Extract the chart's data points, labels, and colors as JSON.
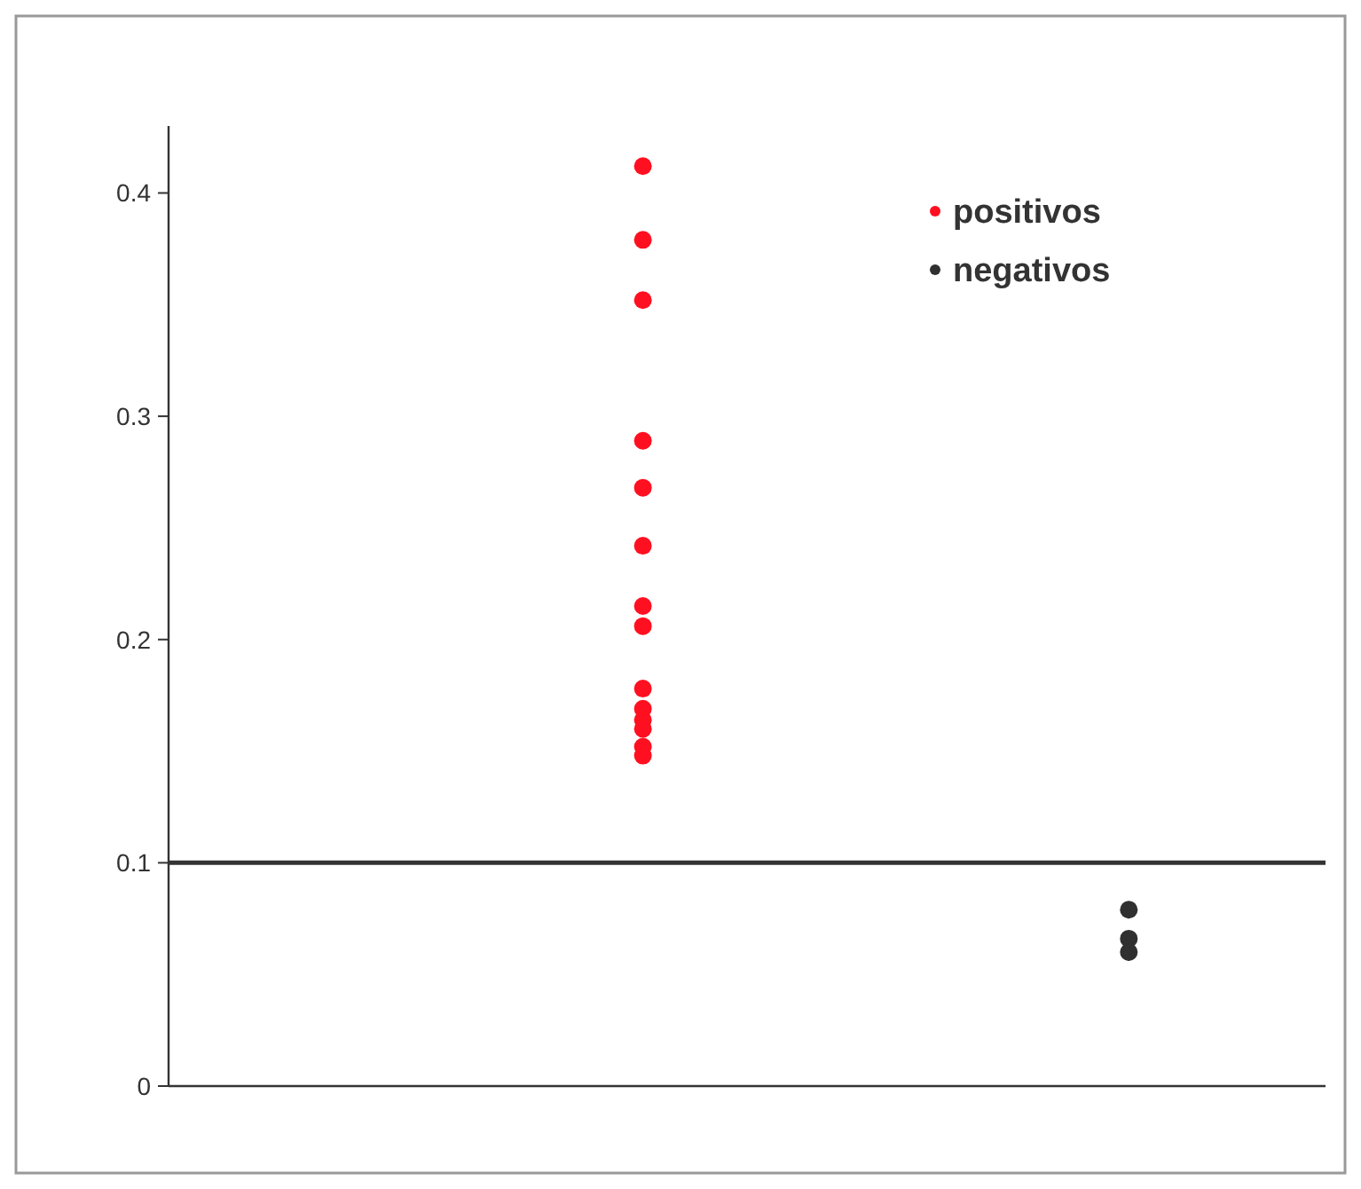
{
  "chart_data": {
    "type": "scatter",
    "categories": [
      null,
      null
    ],
    "ylim": [
      0,
      0.43
    ],
    "yticks": [
      0,
      0.1,
      0.2,
      0.3,
      0.4
    ],
    "grid": false,
    "legend": "top right",
    "marker": "circle",
    "series": [
      {
        "name": "positivos",
        "color": "#ff1020",
        "values": [
          0.412,
          null
        ]
      },
      {
        "color": "#ff1020",
        "values": [
          0.379,
          null
        ]
      },
      {
        "color": "#ff1020",
        "values": [
          0.352,
          null
        ]
      },
      {
        "color": "#ff1020",
        "values": [
          0.289,
          null
        ]
      },
      {
        "color": "#ff1020",
        "values": [
          0.268,
          null
        ]
      },
      {
        "color": "#ff1020",
        "values": [
          0.242,
          null
        ]
      },
      {
        "color": "#ff1020",
        "values": [
          0.215,
          null
        ]
      },
      {
        "color": "#ff1020",
        "values": [
          0.206,
          null
        ]
      },
      {
        "color": "#ff1020",
        "values": [
          0.178,
          null
        ]
      },
      {
        "color": "#ff1020",
        "values": [
          0.169,
          null
        ]
      },
      {
        "color": "#ff1020",
        "values": [
          0.164,
          null
        ]
      },
      {
        "color": "#ff1020",
        "values": [
          0.16,
          null
        ]
      },
      {
        "color": "#ff1020",
        "values": [
          0.152,
          null
        ]
      },
      {
        "color": "#ff1020",
        "values": [
          0.148,
          null
        ]
      },
      {
        "name": "negativos",
        "color": "#303030",
        "values": [
          null,
          0.079
        ]
      },
      {
        "color": "#303030",
        "values": [
          null,
          0.066
        ]
      },
      {
        "color": "#303030",
        "values": [
          null,
          0.06
        ]
      }
    ],
    "ref_lines": [
      {
        "axis": "y",
        "value": 0.1,
        "color": "#333333",
        "line_style": "solid"
      }
    ]
  }
}
